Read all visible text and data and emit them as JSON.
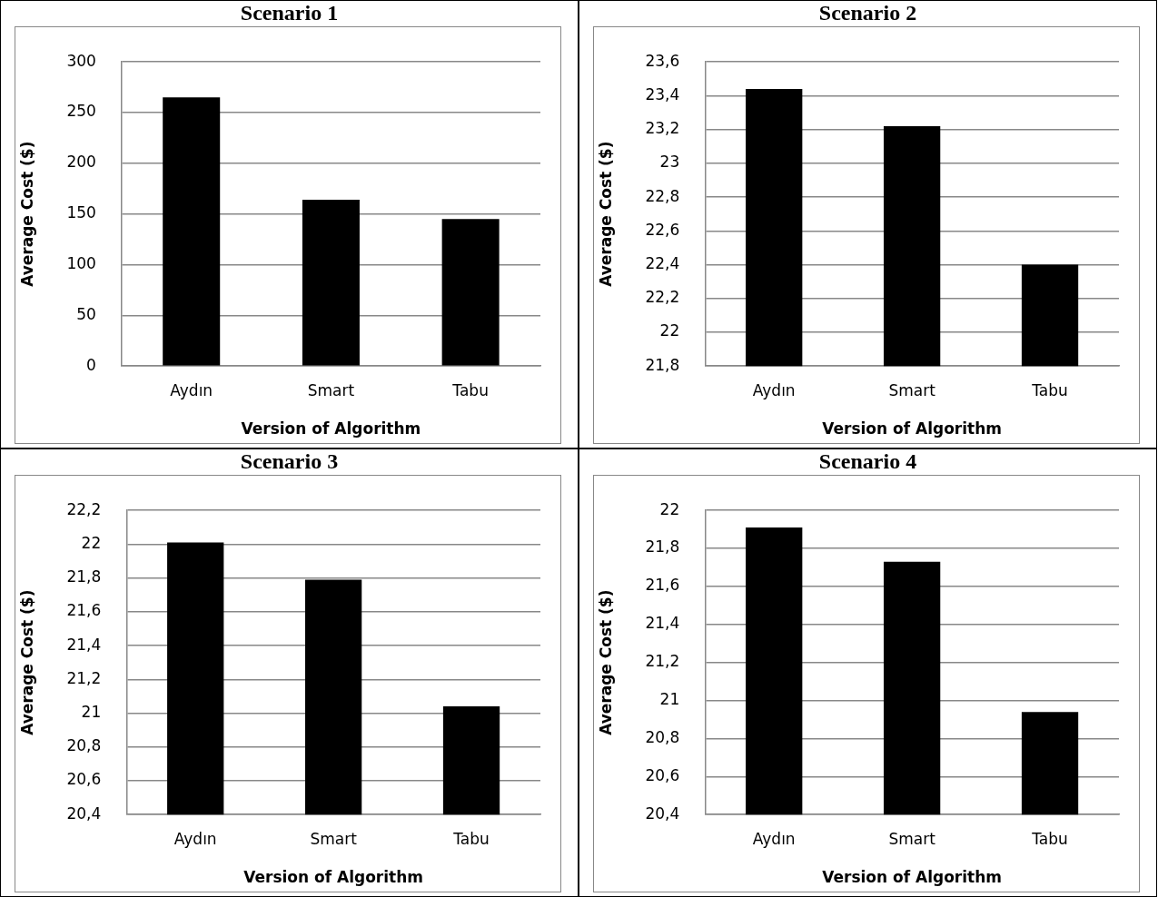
{
  "chart_data": [
    {
      "type": "bar",
      "title": "Scenario 1",
      "xlabel": "Version of Algorithm",
      "ylabel": "Average Cost ($)",
      "categories": [
        "Aydın",
        "Smart",
        "Tabu"
      ],
      "values": [
        265,
        164,
        145
      ],
      "color": "#000000",
      "ylim": [
        0,
        300
      ],
      "yticks": [
        0,
        50,
        100,
        150,
        200,
        250,
        300
      ],
      "grid": "y"
    },
    {
      "type": "bar",
      "title": "Scenario 2",
      "xlabel": "Version of Algorithm",
      "ylabel": "Average Cost ($)",
      "categories": [
        "Aydın",
        "Smart",
        "Tabu"
      ],
      "values": [
        23.44,
        23.22,
        22.4
      ],
      "color": "#000000",
      "ylim": [
        21.8,
        23.6
      ],
      "yticks": [
        {
          "value": 21.8,
          "label": "21,8"
        },
        22,
        {
          "value": 22.2,
          "label": "22,2"
        },
        {
          "value": 22.4,
          "label": "22,4"
        },
        {
          "value": 22.6,
          "label": "22,6"
        },
        {
          "value": 22.8,
          "label": "22,8"
        },
        23,
        {
          "value": 23.2,
          "label": "23,2"
        },
        {
          "value": 23.4,
          "label": "23,4"
        },
        {
          "value": 23.6,
          "label": "23,6"
        }
      ],
      "grid": "y"
    },
    {
      "type": "bar",
      "title": "Scenario 3",
      "xlabel": "Version of Algorithm",
      "ylabel": "Average Cost ($)",
      "categories": [
        "Aydın",
        "Smart",
        "Tabu"
      ],
      "values": [
        22.01,
        21.79,
        21.04
      ],
      "color": "#000000",
      "ylim": [
        20.4,
        22.2
      ],
      "yticks": [
        {
          "value": 20.4,
          "label": "20,4"
        },
        {
          "value": 20.6,
          "label": "20,6"
        },
        {
          "value": 20.8,
          "label": "20,8"
        },
        21,
        {
          "value": 21.2,
          "label": "21,2"
        },
        {
          "value": 21.4,
          "label": "21,4"
        },
        {
          "value": 21.6,
          "label": "21,6"
        },
        {
          "value": 21.8,
          "label": "21,8"
        },
        22,
        {
          "value": 22.2,
          "label": "22,2"
        }
      ],
      "grid": "y"
    },
    {
      "type": "bar",
      "title": "Scenario 4",
      "xlabel": "Version of Algorithm",
      "ylabel": "Average Cost ($)",
      "categories": [
        "Aydın",
        "Smart",
        "Tabu"
      ],
      "values": [
        21.91,
        21.73,
        20.94
      ],
      "color": "#000000",
      "ylim": [
        20.4,
        22
      ],
      "yticks": [
        {
          "value": 20.4,
          "label": "20,4"
        },
        {
          "value": 20.6,
          "label": "20,6"
        },
        {
          "value": 20.8,
          "label": "20,8"
        },
        21,
        {
          "value": 21.2,
          "label": "21,2"
        },
        {
          "value": 21.4,
          "label": "21,4"
        },
        {
          "value": 21.6,
          "label": "21,6"
        },
        {
          "value": 21.8,
          "label": "21,8"
        },
        22
      ],
      "grid": "y"
    }
  ]
}
